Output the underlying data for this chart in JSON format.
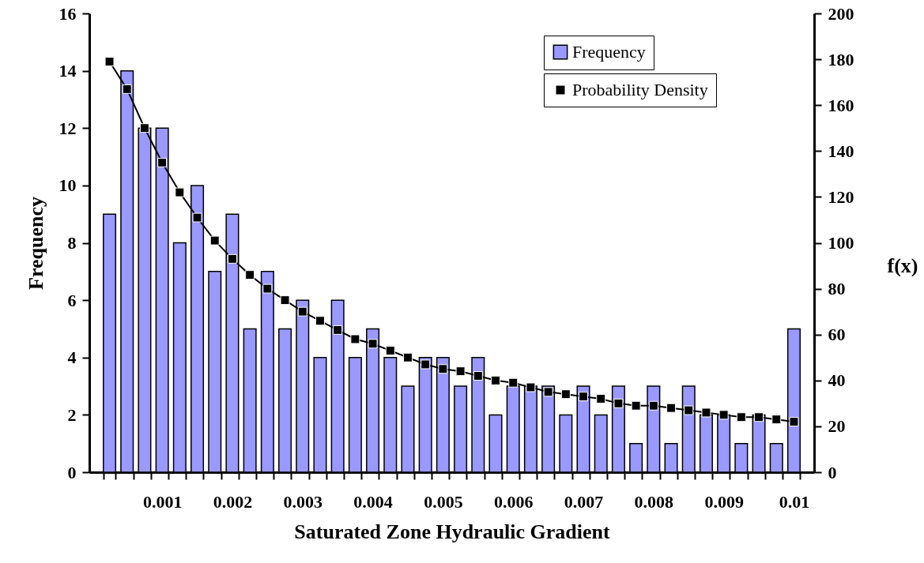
{
  "chart_data": {
    "type": "bar",
    "xlabel": "Saturated Zone Hydraulic Gradient",
    "ylabel": "Frequency",
    "y2label": "f(x)",
    "categories": [
      null,
      null,
      null,
      "0.001",
      null,
      null,
      null,
      "0.002",
      null,
      null,
      null,
      "0.003",
      null,
      null,
      null,
      "0.004",
      null,
      null,
      null,
      "0.005",
      null,
      null,
      null,
      "0.006",
      null,
      null,
      null,
      "0.007",
      null,
      null,
      null,
      "0.008",
      null,
      null,
      null,
      "0.009",
      null,
      null,
      null,
      "0.01"
    ],
    "series": [
      {
        "name": "Frequency",
        "color": "#9999ff",
        "values": [
          9,
          14,
          12,
          12,
          8,
          10,
          7,
          9,
          5,
          7,
          5,
          6,
          4,
          6,
          4,
          5,
          4,
          3,
          4,
          4,
          3,
          4,
          2,
          3,
          3,
          3,
          2,
          3,
          2,
          3,
          1,
          3,
          1,
          3,
          2,
          2,
          1,
          2,
          1,
          5
        ]
      },
      {
        "name": "Probability Density",
        "type": "line",
        "axis": "y2",
        "color": "#000000",
        "values": [
          179,
          167,
          150,
          135,
          122,
          111,
          101,
          93,
          86,
          80,
          75,
          70,
          66,
          62,
          58,
          56,
          53,
          50,
          47,
          45,
          44,
          42,
          40,
          39,
          37,
          35,
          34,
          33,
          32,
          30,
          29,
          29,
          28,
          27,
          26,
          25,
          24,
          24,
          23,
          22
        ]
      }
    ],
    "ylim": [
      0,
      16
    ],
    "yticks": [
      0,
      2,
      4,
      6,
      8,
      10,
      12,
      14,
      16
    ],
    "y2lim": [
      0,
      200
    ],
    "y2ticks": [
      0,
      20,
      40,
      60,
      80,
      100,
      120,
      140,
      160,
      180,
      200
    ],
    "legend": "top right",
    "marker": "square"
  }
}
